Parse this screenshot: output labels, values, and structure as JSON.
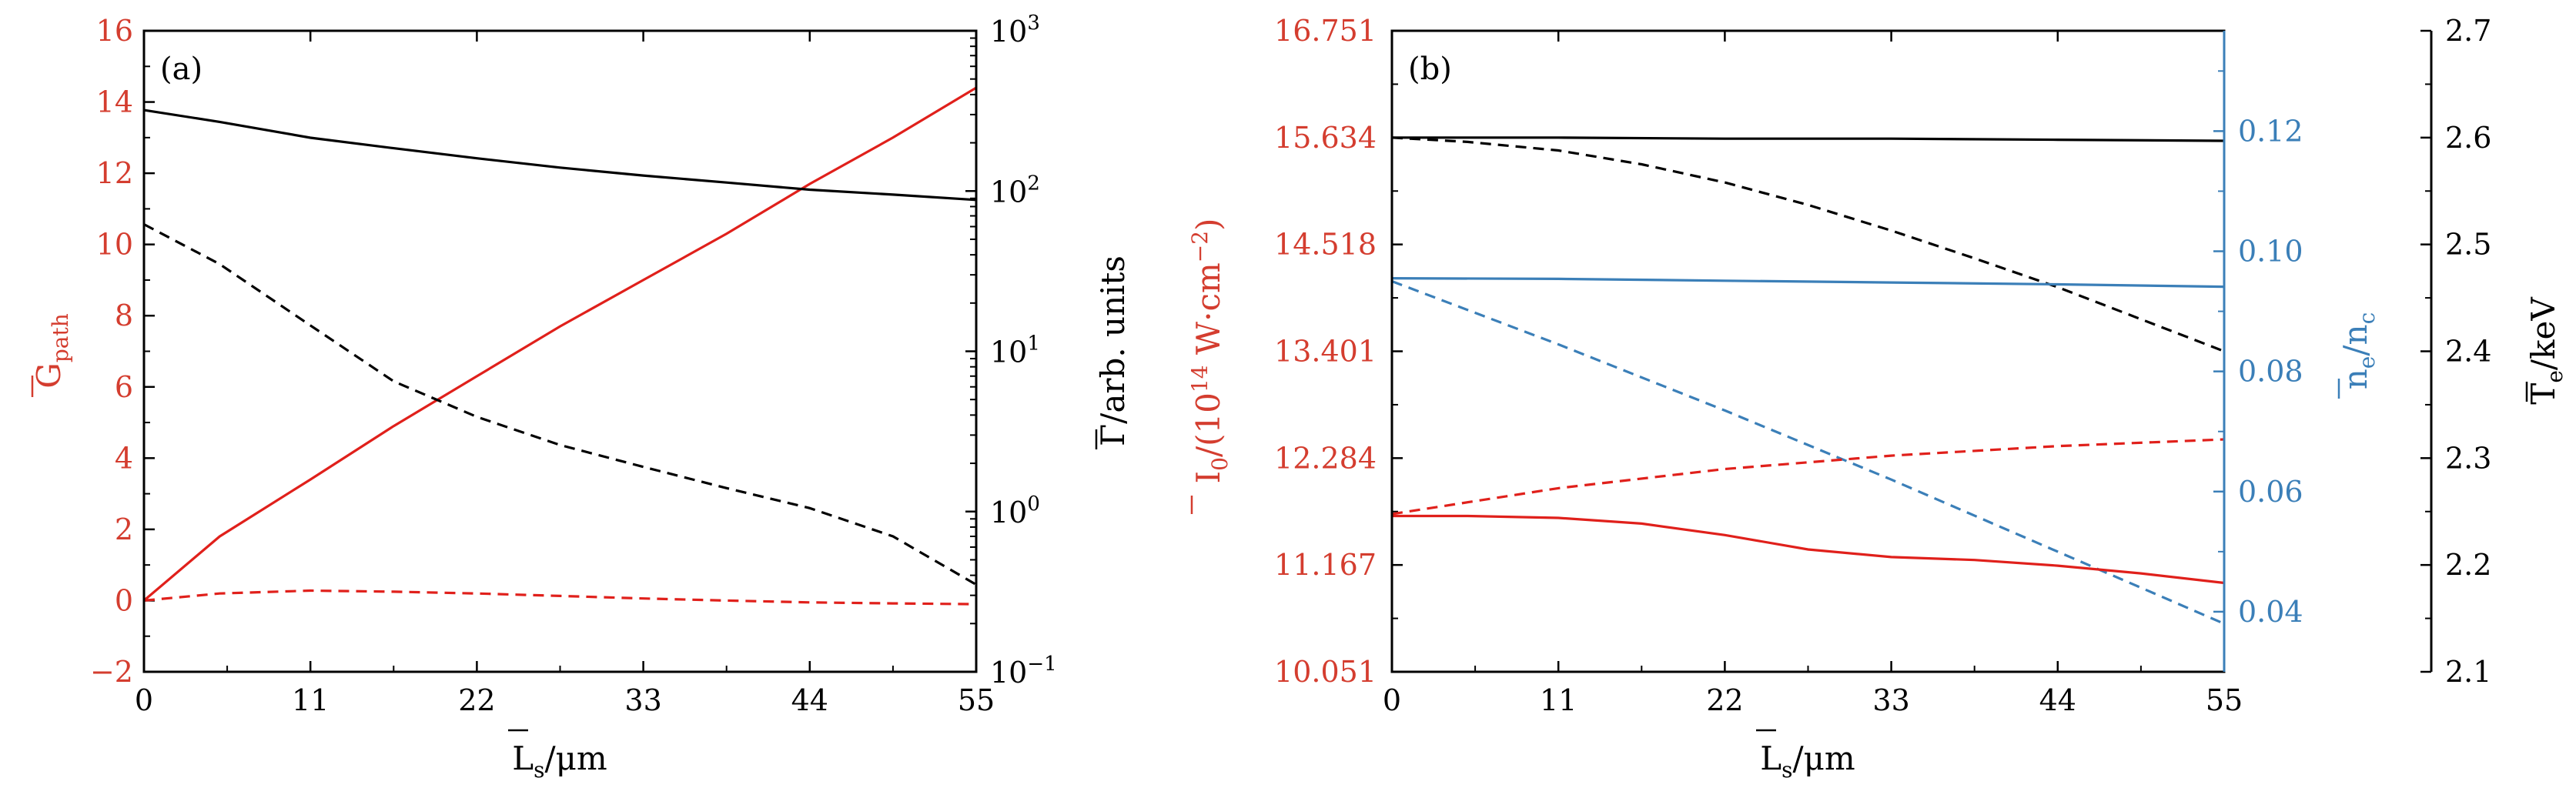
{
  "colors": {
    "red": "#e0201b",
    "blue": "#3b7fb8",
    "black": "#000000",
    "red_text": "#d43d2f",
    "blue_text": "#3b7fb8"
  },
  "chart_data": [
    {
      "panel": "(a)",
      "type": "line",
      "xlabel": {
        "main": "L",
        "sub": "s",
        "unit": "/μm"
      },
      "ylabel_left": {
        "main": "G",
        "sub": "path"
      },
      "ylabel_right": {
        "main": "Γ",
        "unit": "/arb. units"
      },
      "xlim": [
        0,
        55
      ],
      "ylim_left": [
        -2,
        16
      ],
      "ylim_right_log": [
        -1,
        3
      ],
      "x_ticks": [
        "0",
        "11",
        "22",
        "33",
        "44",
        "55"
      ],
      "y_left_ticks": [
        "−2",
        "0",
        "2",
        "4",
        "6",
        "8",
        "10",
        "12",
        "14",
        "16"
      ],
      "y_right_ticks": [
        {
          "base": "10",
          "exp": "−1"
        },
        {
          "base": "10",
          "exp": "0"
        },
        {
          "base": "10",
          "exp": "1"
        },
        {
          "base": "10",
          "exp": "2"
        },
        {
          "base": "10",
          "exp": "3"
        }
      ],
      "series": [
        {
          "name": "G_path solid",
          "axis": "left",
          "color": "red",
          "dash": false,
          "x": [
            0,
            5,
            11,
            16.5,
            22,
            27.5,
            33,
            38.5,
            44,
            49.5,
            55
          ],
          "y": [
            0,
            1.8,
            3.4,
            4.9,
            6.3,
            7.7,
            9.0,
            10.3,
            11.7,
            13.0,
            14.4
          ]
        },
        {
          "name": "G_path dashed",
          "axis": "left",
          "color": "red",
          "dash": true,
          "x": [
            0,
            5,
            11,
            16.5,
            22,
            27.5,
            33,
            38.5,
            44,
            49.5,
            55
          ],
          "y": [
            0,
            0.2,
            0.28,
            0.25,
            0.2,
            0.13,
            0.06,
            0.0,
            -0.05,
            -0.08,
            -0.1
          ]
        },
        {
          "name": "Gamma solid",
          "axis": "right_log",
          "color": "black",
          "dash": false,
          "x": [
            0,
            5,
            11,
            16.5,
            22,
            27.5,
            33,
            38.5,
            44,
            49.5,
            55
          ],
          "y": [
            320,
            270,
            215,
            185,
            160,
            140,
            125,
            113,
            102,
            95,
            88
          ]
        },
        {
          "name": "Gamma dashed",
          "axis": "right_log",
          "color": "black",
          "dash": true,
          "x": [
            0,
            5,
            11,
            16.5,
            22,
            27.5,
            33,
            38.5,
            44,
            49.5,
            55
          ],
          "y": [
            62,
            35,
            14.5,
            6.5,
            3.9,
            2.6,
            1.9,
            1.4,
            1.05,
            0.7,
            0.35
          ]
        }
      ]
    },
    {
      "panel": "(b)",
      "type": "line",
      "xlabel": {
        "main": "L",
        "sub": "s",
        "unit": "/μm"
      },
      "ylabel_left": {
        "main": "I",
        "sub": "0",
        "unit": "/(10",
        "exp": "14",
        "unit2": " W·cm",
        "exp2": "−2",
        "close": ")"
      },
      "ylabel_mid": {
        "main": "n",
        "sub": "e",
        "div": "/n",
        "sub2": "c"
      },
      "ylabel_right": {
        "main": "T",
        "sub": "e",
        "unit": "/keV"
      },
      "xlim": [
        0,
        55
      ],
      "ylim_left": [
        10.051,
        16.751
      ],
      "ylim_mid": [
        0.03,
        0.1367
      ],
      "ylim_right": [
        2.1,
        2.7
      ],
      "x_ticks": [
        "0",
        "11",
        "22",
        "33",
        "44",
        "55"
      ],
      "y_left_ticks": [
        "10.051",
        "11.167",
        "12.284",
        "13.401",
        "14.518",
        "15.634",
        "16.751"
      ],
      "y_mid_ticks": [
        "0.04",
        "0.06",
        "0.08",
        "0.10",
        "0.12"
      ],
      "y_right_ticks": [
        "2.1",
        "2.2",
        "2.3",
        "2.4",
        "2.5",
        "2.6",
        "2.7"
      ],
      "series": [
        {
          "name": "T_e solid",
          "axis": "right",
          "color": "black",
          "dash": false,
          "x": [
            0,
            11,
            22,
            33,
            44,
            55
          ],
          "y": [
            2.6,
            2.6,
            2.599,
            2.599,
            2.598,
            2.597
          ]
        },
        {
          "name": "T_e dashed",
          "axis": "right",
          "color": "black",
          "dash": true,
          "x": [
            0,
            5,
            11,
            16.5,
            22,
            27.5,
            33,
            38.5,
            44,
            49.5,
            55
          ],
          "y": [
            2.6,
            2.596,
            2.588,
            2.575,
            2.558,
            2.537,
            2.513,
            2.487,
            2.46,
            2.43,
            2.4
          ]
        },
        {
          "name": "n_e solid",
          "axis": "mid",
          "color": "blue",
          "dash": false,
          "x": [
            0,
            11,
            22,
            33,
            44,
            55
          ],
          "y": [
            0.0955,
            0.0954,
            0.0951,
            0.0948,
            0.0945,
            0.0941
          ]
        },
        {
          "name": "n_e dashed",
          "axis": "mid",
          "color": "blue",
          "dash": true,
          "x": [
            0,
            11,
            22,
            33,
            44,
            55
          ],
          "y": [
            0.095,
            0.0845,
            0.0735,
            0.062,
            0.05,
            0.038
          ]
        },
        {
          "name": "I_0 solid",
          "axis": "left",
          "color": "red",
          "dash": false,
          "x": [
            0,
            5,
            11,
            16.5,
            22,
            27.5,
            33,
            38.5,
            44,
            49.5,
            55
          ],
          "y": [
            11.68,
            11.68,
            11.66,
            11.6,
            11.48,
            11.33,
            11.25,
            11.22,
            11.16,
            11.08,
            10.98
          ]
        },
        {
          "name": "I_0 dashed",
          "axis": "left",
          "color": "red",
          "dash": true,
          "x": [
            0,
            11,
            22,
            33,
            44,
            55
          ],
          "y": [
            11.7,
            11.97,
            12.17,
            12.31,
            12.41,
            12.48
          ]
        }
      ]
    }
  ]
}
